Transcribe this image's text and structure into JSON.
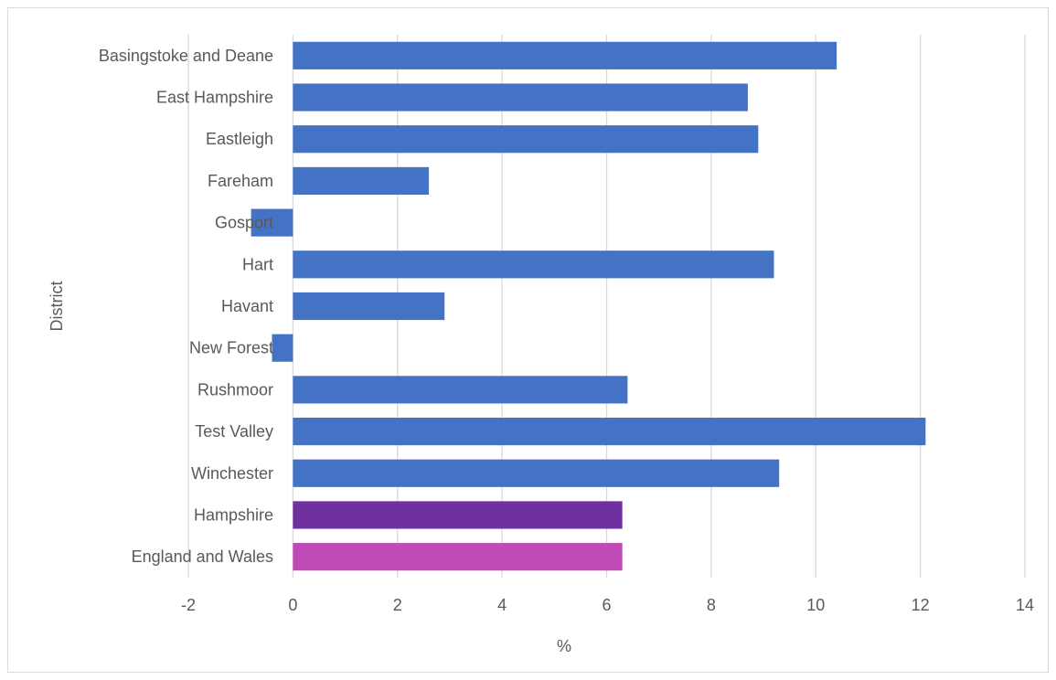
{
  "chart_data": {
    "type": "bar",
    "orientation": "horizontal",
    "categories": [
      "Basingstoke and Deane",
      "East Hampshire",
      "Eastleigh",
      "Fareham",
      "Gosport",
      "Hart",
      "Havant",
      "New Forest",
      "Rushmoor",
      "Test Valley",
      "Winchester",
      "Hampshire",
      "England and Wales"
    ],
    "values": [
      10.4,
      8.7,
      8.9,
      2.6,
      -0.8,
      9.2,
      2.9,
      -0.4,
      6.4,
      12.1,
      9.3,
      6.3,
      6.3
    ],
    "bar_colors": [
      "#4472c4",
      "#4472c4",
      "#4472c4",
      "#4472c4",
      "#4472c4",
      "#4472c4",
      "#4472c4",
      "#4472c4",
      "#4472c4",
      "#4472c4",
      "#4472c4",
      "#7030a0",
      "#c04ab6"
    ],
    "title": "",
    "xlabel": "%",
    "ylabel": "District",
    "xlim": [
      -2,
      14
    ],
    "xticks": [
      "-2",
      "0",
      "2",
      "4",
      "6",
      "8",
      "10",
      "12",
      "14"
    ],
    "grid": "vertical",
    "legend": "none"
  }
}
